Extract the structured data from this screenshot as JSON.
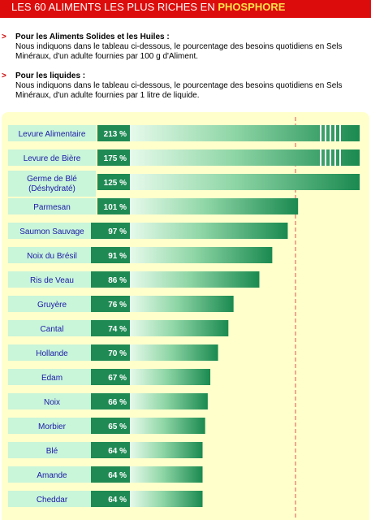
{
  "header": {
    "title_prefix": "LES 60 ALIMENTS LES PLUS RICHES EN ",
    "title_highlight": "PHOSPHORE"
  },
  "intro": [
    {
      "marker": ">",
      "heading": "Pour les Aliments Solides et les Huiles :",
      "text": "Nous indiquons dans le tableau ci-dessous, le pourcentage des besoins quotidiens en Sels Minéraux, d'un adulte fournies par 100 g d'Aliment."
    },
    {
      "marker": ">",
      "heading": "Pour les liquides :",
      "text": "Nous indiquons dans le tableau ci-dessous, le pourcentage des besoins quotidiens en Sels Minéraux, d'un adulte fournies par 1 litre de liquide."
    }
  ],
  "colors": {
    "title_bg": "#dd0c0c",
    "highlight": "#ffe14a",
    "chart_bg": "#ffffcc",
    "label_bg": "#c9f5d9",
    "value_bg": "#1f8a54",
    "bar_dark": "#1a8a50",
    "bar_light": "#e6faeb",
    "label_text": "#1a1aa8",
    "ref_line": "#e65050"
  },
  "chart_data": {
    "type": "bar",
    "orientation": "horizontal",
    "unit": "%",
    "reference_value": 100,
    "categories": [
      "Levure Alimentaire",
      "Levure de Bière",
      "Germe de Blé (Déshydraté)",
      "Parmesan",
      "Saumon Sauvage",
      "Noix du Brésil",
      "Ris de Veau",
      "Gruyère",
      "Cantal",
      "Hollande",
      "Edam",
      "Noix",
      "Morbier",
      "Blé",
      "Amande",
      "Cheddar"
    ],
    "values": [
      213,
      175,
      125,
      101,
      97,
      91,
      86,
      76,
      74,
      70,
      67,
      66,
      65,
      64,
      64,
      64
    ],
    "value_labels": [
      "213 %",
      "175 %",
      "125 %",
      "101 %",
      "97 %",
      "91 %",
      "86 %",
      "76 %",
      "74 %",
      "70 %",
      "67 %",
      "66 %",
      "65 %",
      "64 %",
      "64 %",
      "64 %"
    ],
    "truncated_display": [
      true,
      true,
      false,
      false,
      false,
      false,
      false,
      false,
      false,
      false,
      false,
      false,
      false,
      false,
      false,
      false
    ],
    "xlim": [
      0,
      140
    ],
    "title": "",
    "xlabel": "",
    "ylabel": ""
  }
}
